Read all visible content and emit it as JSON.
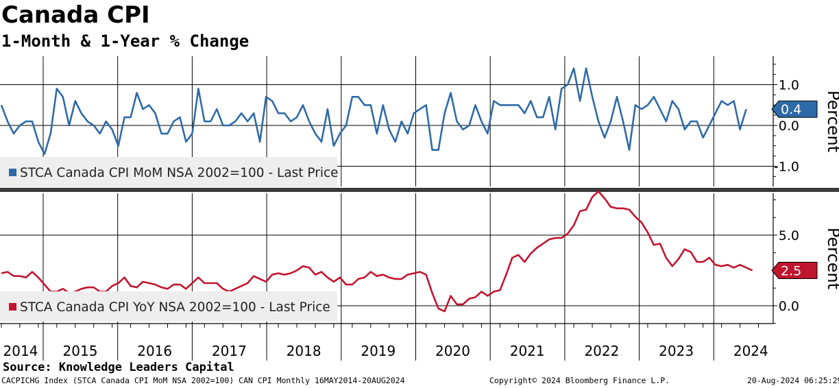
{
  "header": {
    "title": "Canada CPI",
    "subtitle": "1-Month & 1-Year % Change"
  },
  "footer": {
    "source": "Source: Knowledge Leaders Capital",
    "meta": "CACPICHG Index (STCA Canada CPI MoM NSA 2002=100) CAN CPI  Monthly 16MAY2014-20AUG2024",
    "copyright": "Copyright© 2024 Bloomberg Finance L.P.",
    "timestamp": "20-Aug-2024 06:25:29"
  },
  "colors": {
    "mom": "#2e6aa8",
    "yoy": "#c0152f",
    "grid": "#000000",
    "legend_bg": "#eeeeee",
    "divider": "#3a3a3a"
  },
  "chart_data": [
    {
      "type": "line",
      "title": "STCA Canada CPI MoM NSA 2002=100 - Last Price",
      "legend": "STCA Canada CPI MoM NSA 2002=100 - Last Price",
      "ylabel": "Percent",
      "ylim": [
        -1.55,
        1.55
      ],
      "yticks": [
        1.0,
        0.0,
        -1.0
      ],
      "ytick_labels": [
        "1.0",
        "0.0",
        "-1.0"
      ],
      "last_value": 0.4,
      "last_label": "0.4",
      "x_start": "2014-05",
      "x_end": "2024-07",
      "values": [
        0.5,
        0.1,
        -0.2,
        0.0,
        0.1,
        0.1,
        -0.4,
        -0.7,
        -0.2,
        0.9,
        0.7,
        0.0,
        0.6,
        0.3,
        0.1,
        0.0,
        -0.2,
        0.1,
        -0.1,
        -0.5,
        0.2,
        0.2,
        0.8,
        0.4,
        0.5,
        0.3,
        -0.2,
        -0.2,
        0.1,
        0.2,
        -0.4,
        -0.2,
        0.9,
        0.1,
        0.1,
        0.4,
        0.0,
        0.0,
        0.1,
        0.3,
        0.1,
        0.3,
        -0.4,
        0.7,
        0.6,
        0.3,
        0.3,
        0.1,
        0.2,
        0.5,
        0.1,
        -0.2,
        -0.4,
        0.4,
        -0.5,
        -0.2,
        0.0,
        0.7,
        0.7,
        0.5,
        0.5,
        -0.2,
        0.5,
        -0.1,
        -0.4,
        0.1,
        -0.2,
        0.3,
        0.4,
        0.5,
        -0.6,
        -0.6,
        0.3,
        0.8,
        0.1,
        -0.1,
        0.0,
        0.5,
        0.1,
        -0.2,
        0.6,
        0.5,
        0.5,
        0.5,
        0.5,
        0.3,
        0.6,
        0.2,
        0.2,
        0.7,
        -0.1,
        0.9,
        1.0,
        1.4,
        0.6,
        1.4,
        0.7,
        0.1,
        -0.3,
        0.1,
        0.7,
        0.1,
        -0.6,
        0.5,
        0.4,
        0.5,
        0.7,
        0.4,
        0.1,
        0.6,
        0.4,
        -0.1,
        0.1,
        0.1,
        -0.3,
        0.0,
        0.3,
        0.6,
        0.5,
        0.6,
        -0.1,
        0.4
      ]
    },
    {
      "type": "line",
      "title": "STCA Canada CPI YoY NSA 2002=100 - Last Price",
      "legend": "STCA Canada CPI YoY NSA 2002=100 - Last Price",
      "ylabel": "Percent",
      "ylim": [
        -2.2,
        9.2
      ],
      "yticks": [
        5.0,
        0.0
      ],
      "ytick_labels": [
        "5.0",
        "0.0"
      ],
      "last_value": 2.5,
      "last_label": "2.5",
      "x_start": "2014-05",
      "x_end": "2024-07",
      "values": [
        2.3,
        2.4,
        2.1,
        2.1,
        2.0,
        2.4,
        2.0,
        1.5,
        1.0,
        1.0,
        1.2,
        0.9,
        1.0,
        1.2,
        1.3,
        1.3,
        1.0,
        1.0,
        1.4,
        1.6,
        2.0,
        1.4,
        1.3,
        1.7,
        1.6,
        1.5,
        1.3,
        1.2,
        1.5,
        1.5,
        1.2,
        1.6,
        2.0,
        1.6,
        1.6,
        1.6,
        1.2,
        1.0,
        1.2,
        1.4,
        1.6,
        2.1,
        1.9,
        1.7,
        2.2,
        2.3,
        2.2,
        2.3,
        2.5,
        2.8,
        2.7,
        2.2,
        2.4,
        2.0,
        1.7,
        2.0,
        1.5,
        1.5,
        1.9,
        2.0,
        2.4,
        2.1,
        2.2,
        2.0,
        1.9,
        1.9,
        2.2,
        2.3,
        2.4,
        2.2,
        0.9,
        -0.2,
        -0.4,
        0.7,
        0.1,
        0.1,
        0.5,
        0.6,
        1.0,
        0.7,
        1.0,
        1.1,
        2.2,
        3.4,
        3.6,
        3.1,
        3.7,
        4.1,
        4.4,
        4.7,
        4.8,
        4.8,
        5.1,
        5.7,
        6.7,
        6.8,
        7.7,
        8.1,
        7.6,
        7.0,
        6.9,
        6.9,
        6.8,
        6.3,
        5.9,
        5.2,
        4.3,
        4.4,
        3.4,
        2.8,
        3.3,
        4.0,
        3.8,
        3.1,
        3.1,
        3.4,
        2.9,
        2.8,
        2.9,
        2.7,
        2.9,
        2.7,
        2.5
      ]
    }
  ],
  "xaxis": {
    "year_labels": [
      "2014",
      "2015",
      "2016",
      "2017",
      "2018",
      "2019",
      "2020",
      "2021",
      "2022",
      "2023",
      "2024"
    ]
  }
}
